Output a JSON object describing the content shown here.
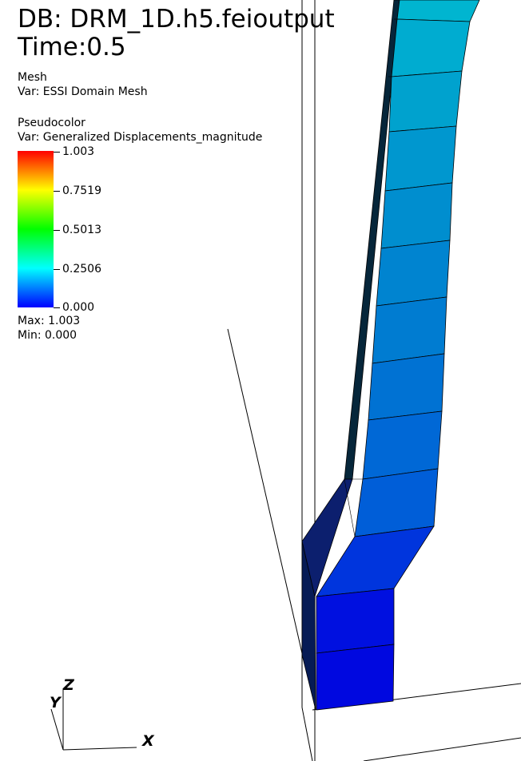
{
  "header": {
    "db_line": "DB: DRM_1D.h5.feioutput",
    "time_line": "Time:0.5"
  },
  "mesh_plot": {
    "title": "Mesh",
    "var_line": "Var: ESSI Domain Mesh"
  },
  "pseudocolor_plot": {
    "title": "Pseudocolor",
    "var_line": "Var: Generalized Displacements_magnitude",
    "legend_ticks": [
      "1.003",
      "0.7519",
      "0.5013",
      "0.2506",
      "0.000"
    ],
    "max_line": "Max:  1.003",
    "min_line": "Min:  0.000",
    "colormap": [
      "#0000ff",
      "#00ffff",
      "#00ff00",
      "#ffff00",
      "#ff0000"
    ]
  },
  "axes_triad": {
    "z_label": "Z",
    "y_label": "Y",
    "x_label": "X"
  }
}
